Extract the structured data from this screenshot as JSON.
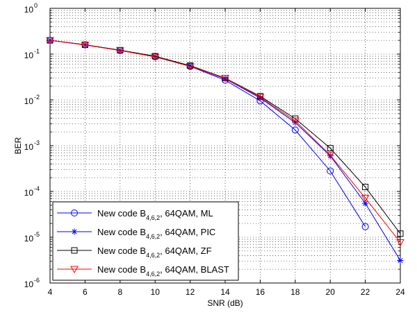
{
  "chart_data": {
    "type": "line",
    "title": "",
    "xlabel": "SNR (dB)",
    "ylabel": "BER",
    "xlim": [
      4,
      24
    ],
    "ylim_exponents": [
      -6,
      0
    ],
    "y_scale": "log",
    "grid": true,
    "legend_position": "bottom-left",
    "x_ticks": [
      "4",
      "6",
      "8",
      "10",
      "12",
      "14",
      "16",
      "18",
      "20",
      "22",
      "24"
    ],
    "y_tick_base": "10",
    "y_tick_exponents": [
      "0",
      "-1",
      "-2",
      "-3",
      "-4",
      "-5",
      "-6"
    ],
    "x": [
      4,
      6,
      8,
      10,
      12,
      14,
      16,
      18,
      20,
      22,
      24
    ],
    "series": [
      {
        "name": "New code B4,6,2, 64QAM, ML",
        "label_prefix": "New code B",
        "label_subscript": "4,6,2",
        "label_suffix": ", 64QAM, ML",
        "marker": "circle",
        "color": "#0000ff",
        "x": [
          4,
          6,
          8,
          10,
          12,
          14,
          16,
          18,
          20,
          22
        ],
        "values": [
          0.2,
          0.16,
          0.12,
          0.088,
          0.054,
          0.027,
          0.0095,
          0.0022,
          0.00028,
          1.7e-05
        ]
      },
      {
        "name": "New code B4,6,2, 64QAM, PIC",
        "label_prefix": "New code B",
        "label_subscript": "4,6,2",
        "label_suffix": ", 64QAM, PIC",
        "marker": "star",
        "color": "#0000ff",
        "x": [
          4,
          6,
          8,
          10,
          12,
          14,
          16,
          18,
          20,
          22,
          24
        ],
        "values": [
          0.2,
          0.16,
          0.12,
          0.088,
          0.055,
          0.029,
          0.011,
          0.0032,
          0.0006,
          5.5e-05,
          3.1e-06
        ]
      },
      {
        "name": "New code B4,6,2, 64QAM, ZF",
        "label_prefix": "New code B",
        "label_subscript": "4,6,2",
        "label_suffix": ", 64QAM, ZF",
        "marker": "square",
        "color": "#000000",
        "x": [
          4,
          6,
          8,
          10,
          12,
          14,
          16,
          18,
          20,
          22,
          24
        ],
        "values": [
          0.2,
          0.16,
          0.122,
          0.09,
          0.056,
          0.03,
          0.012,
          0.0039,
          0.00088,
          0.000125,
          1.2e-05
        ]
      },
      {
        "name": "New code B4,6,2, 64QAM, BLAST",
        "label_prefix": "New code B",
        "label_subscript": "4,6,2",
        "label_suffix": ", 64QAM, BLAST",
        "marker": "triangle-down",
        "color": "#ff0000",
        "x": [
          4,
          6,
          8,
          10,
          12,
          14,
          16,
          18,
          20,
          22,
          24
        ],
        "values": [
          0.2,
          0.158,
          0.12,
          0.087,
          0.054,
          0.03,
          0.0115,
          0.0035,
          0.00062,
          7.2e-05,
          7.7e-06
        ]
      }
    ]
  }
}
